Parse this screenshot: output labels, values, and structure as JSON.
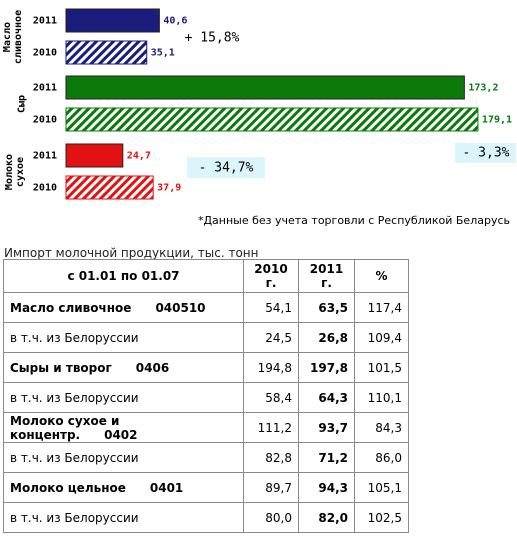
{
  "chart_data": {
    "type": "bar",
    "orientation": "horizontal",
    "categories": [
      "Масло сливочное",
      "Сыр",
      "Молоко сухое"
    ],
    "colors": [
      "#1c1c7c",
      "#0b7a0b",
      "#e31212"
    ],
    "series": [
      {
        "name": "2011",
        "pattern": "solid",
        "values": [
          40.6,
          173.2,
          24.7
        ],
        "value_labels": [
          "40,6",
          "173,2",
          "24,7"
        ]
      },
      {
        "name": "2010",
        "pattern": "hatched",
        "values": [
          35.1,
          179.1,
          37.9
        ],
        "value_labels": [
          "35,1",
          "179,1",
          "37,9"
        ]
      }
    ],
    "annotations": [
      "+ 15,8%",
      "- 3,3%",
      "- 34,7%"
    ],
    "note": "*Данные без учета торговли с Республикой Беларусь"
  },
  "table": {
    "caption": "Импорт молочной продукции, тыс. тонн",
    "header": [
      "с 01.01 по 01.07",
      "2010 г.",
      "2011 г.",
      "%"
    ],
    "rows": [
      {
        "label": "Масло сливочное",
        "code": "040510",
        "cells": [
          "54,1",
          "63,5",
          "117,4"
        ]
      },
      {
        "label": "в т.ч. из Белоруссии",
        "cells": [
          "24,5",
          "26,8",
          "109,4"
        ]
      },
      {
        "label": "Сыры и творог",
        "code": "0406",
        "cells": [
          "194,8",
          "197,8",
          "101,5"
        ]
      },
      {
        "label": "в т.ч. из Белоруссии",
        "cells": [
          "58,4",
          "64,3",
          "110,1"
        ]
      },
      {
        "label": "Молоко сухое и концентр.",
        "code": "0402",
        "cells": [
          "111,2",
          "93,7",
          "84,3"
        ]
      },
      {
        "label": "в т.ч. из Белоруссии",
        "cells": [
          "82,8",
          "71,2",
          "86,0"
        ]
      },
      {
        "label": "Молоко цельное",
        "code": "0401",
        "cells": [
          "89,7",
          "94,3",
          "105,1"
        ]
      },
      {
        "label": "в т.ч. из Белоруссии",
        "cells": [
          "80,0",
          "82,0",
          "102,5"
        ]
      }
    ]
  }
}
